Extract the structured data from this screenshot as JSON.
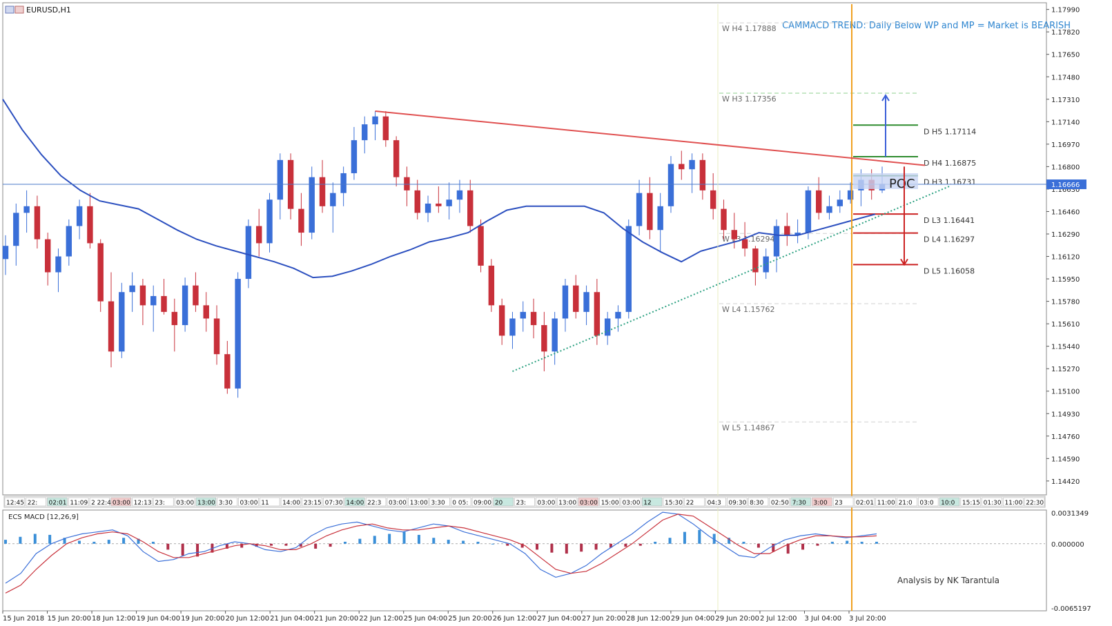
{
  "window": {
    "title": "EURUSD,H1"
  },
  "chart_data": {
    "type": "candlestick",
    "title": "EURUSD,H1",
    "annotation": "CAMMACD TREND: Daily Below WP and MP = Market is BEARISH",
    "credit": "Analysis by NK Tarantula",
    "poc_label": "POC",
    "current_price": "1.16666",
    "ylim": [
      1.1432,
      1.1803
    ],
    "y_ticks": [
      "1.17990",
      "1.17820",
      "1.17650",
      "1.17480",
      "1.17310",
      "1.17140",
      "1.16970",
      "1.16800",
      "1.16630",
      "1.16460",
      "1.16290",
      "1.16120",
      "1.15950",
      "1.15780",
      "1.15610",
      "1.15440",
      "1.15270",
      "1.15100",
      "1.14930",
      "1.14760",
      "1.14590",
      "1.14420"
    ],
    "x_labels": [
      "15 Jun 2018",
      "15 Jun 20:00",
      "18 Jun 12:00",
      "19 Jun 04:00",
      "19 Jun 20:00",
      "20 Jun 12:00",
      "21 Jun 04:00",
      "21 Jun 20:00",
      "22 Jun 12:00",
      "25 Jun 04:00",
      "25 Jun 20:00",
      "26 Jun 12:00",
      "27 Jun 04:00",
      "27 Jun 20:00",
      "28 Jun 12:00",
      "29 Jun 04:00",
      "29 Jun 20:00",
      "2 Jul 12:00",
      "3 Jul 04:00",
      "3 Jul 20:00"
    ],
    "session_labels": [
      "12:45",
      "22:",
      "02:01",
      "11:09",
      "2 22:4",
      "03:00",
      "12:13",
      "23:",
      "03:00",
      "13:00",
      "3:30",
      "03:00",
      "11",
      "14:00",
      "23:15",
      "07:30",
      "14:00",
      "22:3",
      "03:00",
      "13:00",
      "3:30",
      "0 05:",
      "09:00",
      "20",
      "23:",
      "03:00",
      "13:00",
      "03:00",
      "15:00",
      "03:00",
      "12",
      "15:30",
      "22",
      "04:3",
      "09:30",
      "8:30",
      "02:50",
      "7:30",
      "3:00",
      "23",
      "02:01",
      "11:00",
      "21:0",
      "03:0",
      "10:0",
      "15:15",
      "01:30",
      "11:00",
      "22:30"
    ],
    "daily_levels": [
      {
        "name": "H5",
        "label": "D  H5 1.17114",
        "price": 1.17114,
        "color": "#2e8b2e"
      },
      {
        "name": "H4",
        "label": "D  H4 1.16875",
        "price": 1.16875,
        "color": "#2e8b2e"
      },
      {
        "name": "H3",
        "label": "D  H3 1.16731",
        "price": 1.16731,
        "color": "#2e8b2e"
      },
      {
        "name": "L3",
        "label": "D  L3 1.16441",
        "price": 1.16441,
        "color": "#cc2222"
      },
      {
        "name": "L4",
        "label": "D  L4 1.16297",
        "price": 1.16297,
        "color": "#cc2222"
      },
      {
        "name": "L5",
        "label": "D  L5 1.16058",
        "price": 1.16058,
        "color": "#cc2222"
      }
    ],
    "weekly_levels": [
      {
        "name": "H4",
        "label": "W  H4 1.17888",
        "price": 1.17888
      },
      {
        "name": "H3",
        "label": "W  H3 1.17356",
        "price": 1.17356
      },
      {
        "name": "L3",
        "label": "W  L3 1.16294",
        "price": 1.16294
      },
      {
        "name": "L4",
        "label": "W  L4 1.15762",
        "price": 1.15762
      },
      {
        "name": "L5",
        "label": "W  L5 1.14867",
        "price": 1.14867
      }
    ],
    "ma_points": [
      1.1731,
      1.1708,
      1.1689,
      1.1673,
      1.1662,
      1.1654,
      1.1651,
      1.1648,
      1.164,
      1.1632,
      1.1625,
      1.162,
      1.1616,
      1.1612,
      1.1608,
      1.1603,
      1.1596,
      1.1597,
      1.1601,
      1.1606,
      1.1612,
      1.1617,
      1.1623,
      1.1626,
      1.163,
      1.1639,
      1.1647,
      1.165,
      1.165,
      1.165,
      1.165,
      1.1645,
      1.1633,
      1.1623,
      1.1615,
      1.1608,
      1.1616,
      1.162,
      1.1624,
      1.163,
      1.1628,
      1.1628,
      1.1632,
      1.1636,
      1.164,
      1.1644
    ],
    "candles": [
      [
        1.161,
        1.1628,
        1.1598,
        1.162
      ],
      [
        1.162,
        1.1652,
        1.1605,
        1.1645
      ],
      [
        1.1645,
        1.1662,
        1.163,
        1.165
      ],
      [
        1.165,
        1.1658,
        1.1618,
        1.1625
      ],
      [
        1.1625,
        1.163,
        1.159,
        1.16
      ],
      [
        1.16,
        1.1618,
        1.1585,
        1.1612
      ],
      [
        1.1612,
        1.164,
        1.1605,
        1.1635
      ],
      [
        1.1635,
        1.1655,
        1.1625,
        1.165
      ],
      [
        1.165,
        1.166,
        1.1618,
        1.1622
      ],
      [
        1.1622,
        1.1625,
        1.157,
        1.1578
      ],
      [
        1.1578,
        1.16,
        1.1528,
        1.154
      ],
      [
        1.154,
        1.1592,
        1.1535,
        1.1585
      ],
      [
        1.1585,
        1.16,
        1.157,
        1.159
      ],
      [
        1.159,
        1.1595,
        1.156,
        1.1575
      ],
      [
        1.1575,
        1.159,
        1.1555,
        1.1582
      ],
      [
        1.1582,
        1.1595,
        1.1568,
        1.157
      ],
      [
        1.157,
        1.158,
        1.154,
        1.156
      ],
      [
        1.156,
        1.1596,
        1.1555,
        1.159
      ],
      [
        1.159,
        1.16,
        1.157,
        1.1575
      ],
      [
        1.1575,
        1.1585,
        1.1555,
        1.1565
      ],
      [
        1.1565,
        1.1575,
        1.153,
        1.1538
      ],
      [
        1.1538,
        1.1548,
        1.1508,
        1.1512
      ],
      [
        1.1512,
        1.16,
        1.1505,
        1.1595
      ],
      [
        1.1595,
        1.164,
        1.1588,
        1.1635
      ],
      [
        1.1635,
        1.1648,
        1.1612,
        1.1622
      ],
      [
        1.1622,
        1.166,
        1.1615,
        1.1655
      ],
      [
        1.1655,
        1.169,
        1.164,
        1.1685
      ],
      [
        1.1685,
        1.169,
        1.164,
        1.1648
      ],
      [
        1.1648,
        1.166,
        1.162,
        1.163
      ],
      [
        1.163,
        1.168,
        1.1625,
        1.1672
      ],
      [
        1.1672,
        1.1685,
        1.1645,
        1.165
      ],
      [
        1.165,
        1.1668,
        1.163,
        1.166
      ],
      [
        1.166,
        1.168,
        1.165,
        1.1675
      ],
      [
        1.1675,
        1.171,
        1.167,
        1.17
      ],
      [
        1.17,
        1.1718,
        1.169,
        1.1712
      ],
      [
        1.1712,
        1.1722,
        1.17,
        1.1718
      ],
      [
        1.1718,
        1.1722,
        1.1695,
        1.17
      ],
      [
        1.17,
        1.1703,
        1.1665,
        1.1672
      ],
      [
        1.1672,
        1.168,
        1.165,
        1.1662
      ],
      [
        1.1662,
        1.167,
        1.164,
        1.1645
      ],
      [
        1.1645,
        1.1658,
        1.1638,
        1.1652
      ],
      [
        1.1652,
        1.1665,
        1.1645,
        1.165
      ],
      [
        1.165,
        1.1668,
        1.164,
        1.1655
      ],
      [
        1.1655,
        1.167,
        1.1645,
        1.1662
      ],
      [
        1.1662,
        1.167,
        1.163,
        1.1635
      ],
      [
        1.1635,
        1.164,
        1.16,
        1.1605
      ],
      [
        1.1605,
        1.161,
        1.157,
        1.1575
      ],
      [
        1.1575,
        1.158,
        1.1545,
        1.1552
      ],
      [
        1.1552,
        1.157,
        1.1542,
        1.1565
      ],
      [
        1.1565,
        1.1578,
        1.1555,
        1.157
      ],
      [
        1.157,
        1.158,
        1.155,
        1.156
      ],
      [
        1.156,
        1.157,
        1.1525,
        1.154
      ],
      [
        1.154,
        1.157,
        1.153,
        1.1565
      ],
      [
        1.1565,
        1.1595,
        1.1555,
        1.159
      ],
      [
        1.159,
        1.1598,
        1.1565,
        1.157
      ],
      [
        1.157,
        1.159,
        1.156,
        1.1585
      ],
      [
        1.1585,
        1.1595,
        1.1545,
        1.1552
      ],
      [
        1.1552,
        1.157,
        1.1545,
        1.1565
      ],
      [
        1.1565,
        1.1575,
        1.1555,
        1.157
      ],
      [
        1.157,
        1.164,
        1.1565,
        1.1635
      ],
      [
        1.1635,
        1.167,
        1.1628,
        1.166
      ],
      [
        1.166,
        1.1672,
        1.1625,
        1.1632
      ],
      [
        1.1632,
        1.166,
        1.1615,
        1.165
      ],
      [
        1.165,
        1.1688,
        1.1645,
        1.1682
      ],
      [
        1.1682,
        1.1692,
        1.167,
        1.1678
      ],
      [
        1.1678,
        1.169,
        1.166,
        1.1685
      ],
      [
        1.1685,
        1.169,
        1.1655,
        1.1662
      ],
      [
        1.1662,
        1.1675,
        1.164,
        1.1648
      ],
      [
        1.1648,
        1.1655,
        1.1625,
        1.1632
      ],
      [
        1.1632,
        1.1645,
        1.1618,
        1.1625
      ],
      [
        1.1625,
        1.1638,
        1.1612,
        1.1618
      ],
      [
        1.1618,
        1.162,
        1.159,
        1.16
      ],
      [
        1.16,
        1.1618,
        1.1595,
        1.1612
      ],
      [
        1.1612,
        1.164,
        1.16,
        1.1635
      ],
      [
        1.1635,
        1.1645,
        1.162,
        1.1628
      ],
      [
        1.1628,
        1.164,
        1.1622,
        1.163
      ],
      [
        1.163,
        1.1665,
        1.1625,
        1.1662
      ],
      [
        1.1662,
        1.1672,
        1.164,
        1.1645
      ],
      [
        1.1645,
        1.1658,
        1.164,
        1.165
      ],
      [
        1.165,
        1.1662,
        1.1645,
        1.1655
      ],
      [
        1.1655,
        1.1668,
        1.1652,
        1.1662
      ],
      [
        1.1662,
        1.1678,
        1.165,
        1.167
      ],
      [
        1.167,
        1.1678,
        1.1655,
        1.1662
      ],
      [
        1.1662,
        1.168,
        1.166,
        1.1667
      ]
    ],
    "macd_label": "ECS MACD [12,26,9]",
    "macd_ticks": [
      "0.0031349",
      "0.000000",
      "-0.0065197"
    ],
    "macd_hist": [
      0.0004,
      0.0007,
      0.001,
      0.0009,
      0.0006,
      0.0003,
      0.0002,
      0.0004,
      0.0006,
      0.0005,
      0.0002,
      -0.0006,
      -0.0012,
      -0.0013,
      -0.0009,
      -0.0005,
      -0.0004,
      -0.0003,
      -0.0002,
      -0.0002,
      -0.0003,
      -0.0005,
      -0.0003,
      0.0002,
      0.0005,
      0.0008,
      0.001,
      0.0012,
      0.0009,
      0.0006,
      0.0004,
      0.0003,
      0.0002,
      0.0,
      -0.0002,
      -0.0004,
      -0.0006,
      -0.0009,
      -0.001,
      -0.0008,
      -0.0006,
      -0.0004,
      -0.0003,
      -0.0002,
      0.0002,
      0.0006,
      0.0012,
      0.0014,
      0.001,
      0.0006,
      0.0002,
      -0.0004,
      -0.0008,
      -0.001,
      -0.0006,
      -0.0002,
      0.0002,
      0.0003,
      0.0002,
      0.0002
    ],
    "macd_line": [
      -0.004,
      -0.003,
      -0.001,
      0.0,
      0.0006,
      0.001,
      0.0012,
      0.0014,
      0.0008,
      -0.0008,
      -0.0018,
      -0.0016,
      -0.001,
      -0.0008,
      -0.0002,
      0.0002,
      0.0,
      -0.0006,
      -0.0008,
      -0.0004,
      0.0008,
      0.0016,
      0.002,
      0.0022,
      0.0018,
      0.0014,
      0.0012,
      0.0016,
      0.002,
      0.0018,
      0.0012,
      0.0008,
      0.0004,
      0.0,
      -0.001,
      -0.0026,
      -0.0034,
      -0.003,
      -0.0022,
      -0.001,
      0.0,
      0.001,
      0.0022,
      0.0032,
      0.003,
      0.002,
      0.0008,
      -0.0002,
      -0.0012,
      -0.0014,
      -0.0004,
      0.0004,
      0.0008,
      0.001,
      0.0008,
      0.0006,
      0.0008,
      0.001
    ],
    "signal_line": [
      -0.005,
      -0.0042,
      -0.0026,
      -0.0012,
      0.0,
      0.0006,
      0.001,
      0.0012,
      0.001,
      0.0002,
      -0.0008,
      -0.0014,
      -0.0014,
      -0.001,
      -0.0006,
      -0.0002,
      0.0,
      -0.0002,
      -0.0006,
      -0.0006,
      0.0,
      0.0008,
      0.0014,
      0.0018,
      0.002,
      0.0016,
      0.0014,
      0.0014,
      0.0016,
      0.0018,
      0.0016,
      0.0012,
      0.0008,
      0.0004,
      -0.0002,
      -0.0014,
      -0.0026,
      -0.003,
      -0.0028,
      -0.002,
      -0.001,
      0.0,
      0.0012,
      0.0024,
      0.003,
      0.0028,
      0.0018,
      0.0008,
      -0.0002,
      -0.001,
      -0.001,
      -0.0002,
      0.0004,
      0.0008,
      0.0008,
      0.0007,
      0.0007,
      0.0008
    ],
    "colors": {
      "bull": "#3a6fd8",
      "bear": "#c8303a",
      "ma": "#2b4fbf",
      "trend_down": "#e05050",
      "trend_up": "#2aa080",
      "current_line": "#4a78c8",
      "vline": "#f0a020",
      "bg": "#ffffff"
    }
  }
}
